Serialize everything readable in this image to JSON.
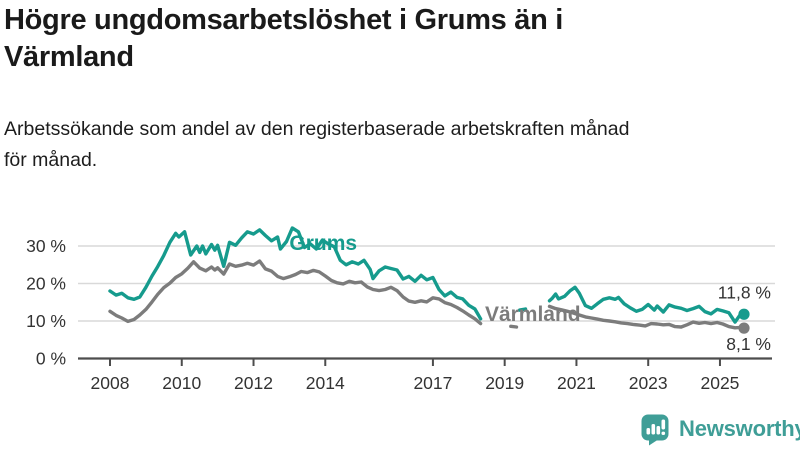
{
  "header": {
    "title": "Högre ungdomsarbetslöshet i Grums än i Värmland",
    "title_lines": [
      "Högre ungdomsarbetslöshet i Grums än i",
      "Värmland"
    ],
    "subtitle": "Arbetssökande som andel av den registerbaserade arbetskraften månad för månad.",
    "subtitle_lines": [
      "Arbetssökande som andel av den registerbaserade arbetskraften månad",
      "för månad."
    ]
  },
  "branding": {
    "logo_text": "Newsworthy",
    "logo_color": "#3f9e97"
  },
  "chart_data": {
    "type": "line",
    "title": "Högre ungdomsarbetslöshet i Grums än i Värmland",
    "subtitle": "Arbetssökande som andel av den registerbaserade arbetskraften månad för månad.",
    "xlabel": "",
    "ylabel": "",
    "x_range": [
      2007.6,
      2026.3
    ],
    "ylim": [
      0,
      37
    ],
    "grid": "horizontal",
    "legend_position": "inline-labels",
    "y_ticks": [
      {
        "value": 0,
        "label": "0 %"
      },
      {
        "value": 10,
        "label": "10 %"
      },
      {
        "value": 20,
        "label": "20 %"
      },
      {
        "value": 30,
        "label": "30 %"
      }
    ],
    "x_ticks": [
      {
        "value": 2008,
        "label": "2008"
      },
      {
        "value": 2010,
        "label": "2010"
      },
      {
        "value": 2012,
        "label": "2012"
      },
      {
        "value": 2014,
        "label": "2014"
      },
      {
        "value": 2017,
        "label": "2017"
      },
      {
        "value": 2019,
        "label": "2019"
      },
      {
        "value": 2021,
        "label": "2021"
      },
      {
        "value": 2023,
        "label": "2023"
      },
      {
        "value": 2025,
        "label": "2025"
      }
    ],
    "series": [
      {
        "name": "Grums",
        "color": "#169b8d",
        "end_label": "11,8 %",
        "end_value": 11.8,
        "label_anchor": [
          2013.0,
          28.9
        ],
        "segments": [
          [
            [
              2008.0,
              18.0
            ],
            [
              2008.17,
              16.9
            ],
            [
              2008.33,
              17.4
            ],
            [
              2008.5,
              16.2
            ],
            [
              2008.67,
              15.8
            ],
            [
              2008.83,
              16.4
            ],
            [
              2009.0,
              19.0
            ],
            [
              2009.17,
              22.0
            ],
            [
              2009.33,
              24.5
            ],
            [
              2009.5,
              27.5
            ],
            [
              2009.67,
              31.0
            ],
            [
              2009.83,
              33.4
            ],
            [
              2009.92,
              32.4
            ],
            [
              2010.08,
              33.8
            ],
            [
              2010.25,
              27.6
            ],
            [
              2010.42,
              30.0
            ],
            [
              2010.5,
              28.3
            ],
            [
              2010.58,
              30.0
            ],
            [
              2010.67,
              27.9
            ],
            [
              2010.83,
              30.4
            ],
            [
              2010.92,
              28.9
            ],
            [
              2011.0,
              30.2
            ],
            [
              2011.17,
              24.6
            ],
            [
              2011.33,
              31.0
            ],
            [
              2011.5,
              30.2
            ],
            [
              2011.67,
              32.2
            ],
            [
              2011.83,
              33.8
            ],
            [
              2012.0,
              33.2
            ],
            [
              2012.17,
              34.3
            ],
            [
              2012.33,
              32.8
            ],
            [
              2012.5,
              31.4
            ],
            [
              2012.67,
              32.4
            ],
            [
              2012.75,
              29.2
            ],
            [
              2012.92,
              31.2
            ],
            [
              2013.08,
              34.8
            ],
            [
              2013.25,
              33.8
            ],
            [
              2013.42,
              29.6
            ],
            [
              2013.58,
              30.6
            ],
            [
              2013.75,
              29.2
            ],
            [
              2013.92,
              31.6
            ],
            [
              2014.08,
              30.6
            ],
            [
              2014.25,
              29.8
            ],
            [
              2014.42,
              26.2
            ],
            [
              2014.58,
              25.0
            ],
            [
              2014.75,
              25.8
            ],
            [
              2014.92,
              25.2
            ],
            [
              2015.08,
              26.2
            ],
            [
              2015.25,
              23.8
            ],
            [
              2015.33,
              21.3
            ],
            [
              2015.5,
              23.4
            ],
            [
              2015.67,
              24.4
            ],
            [
              2015.83,
              24.0
            ],
            [
              2016.0,
              23.6
            ],
            [
              2016.17,
              21.2
            ],
            [
              2016.33,
              21.9
            ],
            [
              2016.5,
              20.6
            ],
            [
              2016.67,
              22.2
            ],
            [
              2016.83,
              21.0
            ],
            [
              2017.0,
              21.6
            ],
            [
              2017.17,
              18.4
            ],
            [
              2017.33,
              16.7
            ],
            [
              2017.5,
              17.7
            ],
            [
              2017.67,
              16.3
            ],
            [
              2017.83,
              15.9
            ],
            [
              2018.0,
              14.2
            ],
            [
              2018.17,
              13.2
            ],
            [
              2018.33,
              10.6
            ]
          ],
          [
            [
              2019.42,
              12.9
            ],
            [
              2019.58,
              13.2
            ]
          ],
          [
            [
              2020.25,
              15.4
            ],
            [
              2020.33,
              16.1
            ],
            [
              2020.42,
              17.2
            ],
            [
              2020.5,
              15.9
            ],
            [
              2020.67,
              16.6
            ],
            [
              2020.83,
              18.1
            ],
            [
              2020.96,
              19.0
            ],
            [
              2021.08,
              17.4
            ],
            [
              2021.25,
              14.1
            ],
            [
              2021.42,
              13.4
            ],
            [
              2021.58,
              14.6
            ],
            [
              2021.75,
              15.8
            ],
            [
              2021.92,
              16.2
            ],
            [
              2022.08,
              15.8
            ],
            [
              2022.17,
              16.3
            ],
            [
              2022.33,
              14.6
            ],
            [
              2022.5,
              13.5
            ],
            [
              2022.67,
              12.6
            ],
            [
              2022.83,
              13.1
            ],
            [
              2023.0,
              14.4
            ],
            [
              2023.17,
              12.9
            ],
            [
              2023.25,
              14.0
            ],
            [
              2023.42,
              12.4
            ],
            [
              2023.58,
              14.3
            ],
            [
              2023.75,
              13.7
            ],
            [
              2023.92,
              13.4
            ],
            [
              2024.08,
              12.8
            ],
            [
              2024.25,
              13.3
            ],
            [
              2024.42,
              13.9
            ],
            [
              2024.58,
              12.5
            ],
            [
              2024.75,
              11.9
            ],
            [
              2024.92,
              13.1
            ],
            [
              2025.08,
              12.7
            ],
            [
              2025.25,
              12.2
            ],
            [
              2025.42,
              9.7
            ],
            [
              2025.58,
              11.9
            ],
            [
              2025.67,
              11.8
            ]
          ]
        ]
      },
      {
        "name": "Värmland",
        "color": "#7c7c7c",
        "end_label": "8,1 %",
        "end_value": 8.1,
        "label_anchor": [
          2018.45,
          10.0
        ],
        "segments": [
          [
            [
              2008.0,
              12.6
            ],
            [
              2008.17,
              11.5
            ],
            [
              2008.33,
              10.8
            ],
            [
              2008.5,
              9.9
            ],
            [
              2008.67,
              10.4
            ],
            [
              2008.83,
              11.6
            ],
            [
              2009.0,
              13.1
            ],
            [
              2009.17,
              15.1
            ],
            [
              2009.33,
              17.1
            ],
            [
              2009.5,
              18.9
            ],
            [
              2009.67,
              20.1
            ],
            [
              2009.83,
              21.6
            ],
            [
              2010.0,
              22.6
            ],
            [
              2010.17,
              24.1
            ],
            [
              2010.33,
              25.8
            ],
            [
              2010.5,
              24.1
            ],
            [
              2010.67,
              23.4
            ],
            [
              2010.83,
              24.4
            ],
            [
              2010.92,
              23.6
            ],
            [
              2011.0,
              24.2
            ],
            [
              2011.17,
              22.5
            ],
            [
              2011.33,
              25.2
            ],
            [
              2011.5,
              24.6
            ],
            [
              2011.67,
              24.9
            ],
            [
              2011.83,
              25.4
            ],
            [
              2012.0,
              24.9
            ],
            [
              2012.17,
              26.0
            ],
            [
              2012.33,
              23.9
            ],
            [
              2012.5,
              23.3
            ],
            [
              2012.67,
              21.9
            ],
            [
              2012.83,
              21.3
            ],
            [
              2013.0,
              21.8
            ],
            [
              2013.17,
              22.4
            ],
            [
              2013.33,
              23.2
            ],
            [
              2013.5,
              22.9
            ],
            [
              2013.67,
              23.5
            ],
            [
              2013.83,
              23.1
            ],
            [
              2014.0,
              22.0
            ],
            [
              2014.17,
              20.8
            ],
            [
              2014.33,
              20.2
            ],
            [
              2014.5,
              19.9
            ],
            [
              2014.67,
              20.6
            ],
            [
              2014.83,
              20.2
            ],
            [
              2015.0,
              20.4
            ],
            [
              2015.17,
              19.1
            ],
            [
              2015.33,
              18.4
            ],
            [
              2015.5,
              18.1
            ],
            [
              2015.67,
              18.4
            ],
            [
              2015.83,
              19.0
            ],
            [
              2016.0,
              18.1
            ],
            [
              2016.17,
              16.4
            ],
            [
              2016.33,
              15.3
            ],
            [
              2016.5,
              15.0
            ],
            [
              2016.67,
              15.4
            ],
            [
              2016.83,
              15.1
            ],
            [
              2017.0,
              16.2
            ],
            [
              2017.17,
              15.9
            ],
            [
              2017.33,
              14.9
            ],
            [
              2017.5,
              14.4
            ],
            [
              2017.67,
              13.6
            ],
            [
              2017.83,
              12.7
            ],
            [
              2018.0,
              11.6
            ],
            [
              2018.17,
              10.6
            ],
            [
              2018.33,
              9.3
            ]
          ],
          [
            [
              2019.17,
              8.6
            ],
            [
              2019.33,
              8.4
            ]
          ],
          [
            [
              2020.25,
              13.9
            ],
            [
              2020.42,
              13.3
            ],
            [
              2020.58,
              13.0
            ],
            [
              2020.75,
              12.6
            ],
            [
              2020.92,
              12.1
            ],
            [
              2021.08,
              11.6
            ],
            [
              2021.25,
              11.1
            ],
            [
              2021.42,
              10.8
            ],
            [
              2021.58,
              10.5
            ],
            [
              2021.75,
              10.2
            ],
            [
              2021.92,
              10.0
            ],
            [
              2022.08,
              9.8
            ],
            [
              2022.25,
              9.5
            ],
            [
              2022.42,
              9.3
            ],
            [
              2022.58,
              9.1
            ],
            [
              2022.75,
              8.9
            ],
            [
              2022.92,
              8.7
            ],
            [
              2023.08,
              9.3
            ],
            [
              2023.25,
              9.2
            ],
            [
              2023.42,
              9.0
            ],
            [
              2023.58,
              9.1
            ],
            [
              2023.75,
              8.5
            ],
            [
              2023.92,
              8.4
            ],
            [
              2024.08,
              9.0
            ],
            [
              2024.25,
              9.7
            ],
            [
              2024.42,
              9.4
            ],
            [
              2024.58,
              9.6
            ],
            [
              2024.75,
              9.3
            ],
            [
              2024.92,
              9.6
            ],
            [
              2025.08,
              9.2
            ],
            [
              2025.25,
              8.5
            ],
            [
              2025.42,
              8.2
            ],
            [
              2025.58,
              8.3
            ],
            [
              2025.67,
              8.1
            ]
          ]
        ]
      }
    ],
    "colors": {
      "grid": "#d9d9d9",
      "axis": "#4d4d4d",
      "tick_text": "#333333",
      "annotation_text": "#333333"
    }
  }
}
